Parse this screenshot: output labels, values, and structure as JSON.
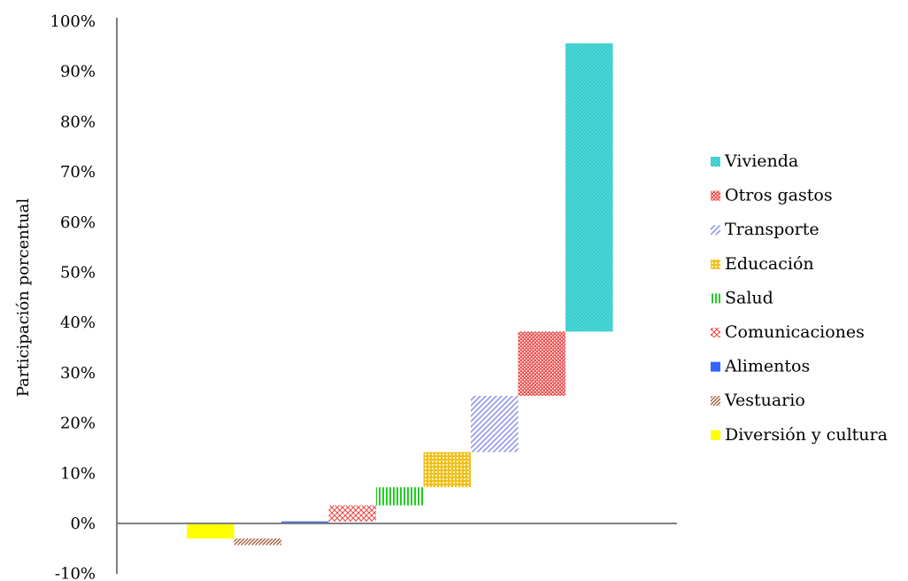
{
  "chart_data": {
    "type": "bar",
    "variant": "waterfall",
    "ylabel": "Participación porcentual",
    "xlabel": "",
    "ylim": [
      -10,
      100
    ],
    "y_ticks": [
      -10,
      0,
      10,
      20,
      30,
      40,
      50,
      60,
      70,
      80,
      90,
      100
    ],
    "y_tick_labels": [
      "-10%",
      "0%",
      "10%",
      "20%",
      "30%",
      "40%",
      "50%",
      "60%",
      "70%",
      "80%",
      "90%",
      "100%"
    ],
    "grid": false,
    "legend_position": "right",
    "series": [
      {
        "name": "Diversión y cultura",
        "start": 0,
        "end": -3.0,
        "color": "#ffff00",
        "pattern": "solid"
      },
      {
        "name": "Vestuario",
        "start": -3.0,
        "end": -4.3,
        "color": "#a0522d",
        "pattern": "diagonal"
      },
      {
        "name": "Alimentos",
        "start": 0,
        "end": 0.4,
        "color": "#3366ff",
        "pattern": "solid"
      },
      {
        "name": "Comunicaciones",
        "start": 0.4,
        "end": 3.6,
        "color": "#ee4444",
        "pattern": "crosshatch"
      },
      {
        "name": "Salud",
        "start": 3.6,
        "end": 7.2,
        "color": "#22cc22",
        "pattern": "vertical"
      },
      {
        "name": "Educación",
        "start": 7.2,
        "end": 14.2,
        "color": "#f0c020",
        "pattern": "grid"
      },
      {
        "name": "Transporte",
        "start": 14.2,
        "end": 25.4,
        "color": "#8888ee",
        "pattern": "diagonal"
      },
      {
        "name": "Otros gastos",
        "start": 25.4,
        "end": 38.2,
        "color": "#ee5555",
        "pattern": "dense"
      },
      {
        "name": "Vivienda",
        "start": 38.2,
        "end": 95.6,
        "color": "#33cccc",
        "pattern": "dots"
      }
    ],
    "legend_order": [
      "Vivienda",
      "Otros gastos",
      "Transporte",
      "Educación",
      "Salud",
      "Comunicaciones",
      "Alimentos",
      "Vestuario",
      "Diversión y cultura"
    ]
  }
}
